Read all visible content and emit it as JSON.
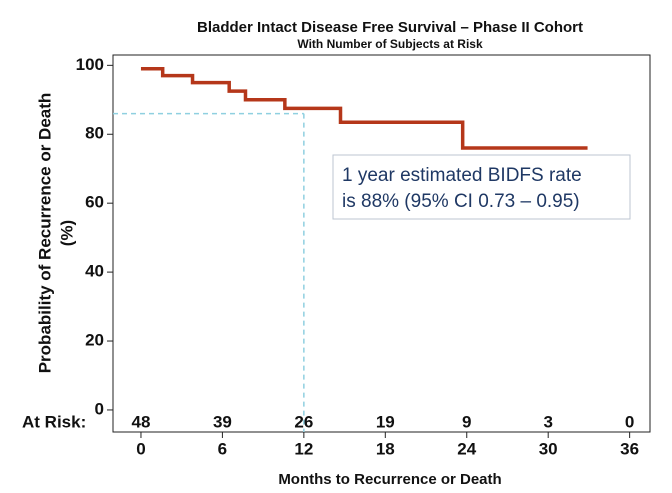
{
  "chart_data": {
    "type": "line",
    "step": "post",
    "title": "Bladder Intact Disease Free Survival – Phase II Cohort",
    "subtitle": "With Number of Subjects at Risk",
    "x_label": "Months to Recurrence or Death",
    "y_label": [
      "Probability of Recurrence or Death",
      "(%)"
    ],
    "x": [
      0,
      1.6,
      3.8,
      6.5,
      7.7,
      10.6,
      14.7,
      23.7,
      32.9
    ],
    "values": [
      99,
      97,
      95,
      92.5,
      90,
      87.5,
      83.5,
      76,
      76
    ],
    "color": "#b5371a",
    "xlim": [
      -2.06,
      37.5
    ],
    "ylim": [
      -6.4,
      103
    ],
    "xticks": [
      0,
      6,
      12,
      18,
      24,
      30,
      36
    ],
    "yticks": [
      0,
      20,
      40,
      60,
      80,
      100
    ],
    "reference": {
      "x": 12,
      "y": 86,
      "color": "#8fd0e0"
    },
    "at_risk_label": "At Risk:",
    "at_risk": [
      48,
      39,
      26,
      19,
      9,
      3,
      0
    ],
    "annotation": [
      "1 year estimated BIDFS rate",
      "is 88% (95% CI 0.73 – 0.95)"
    ]
  }
}
